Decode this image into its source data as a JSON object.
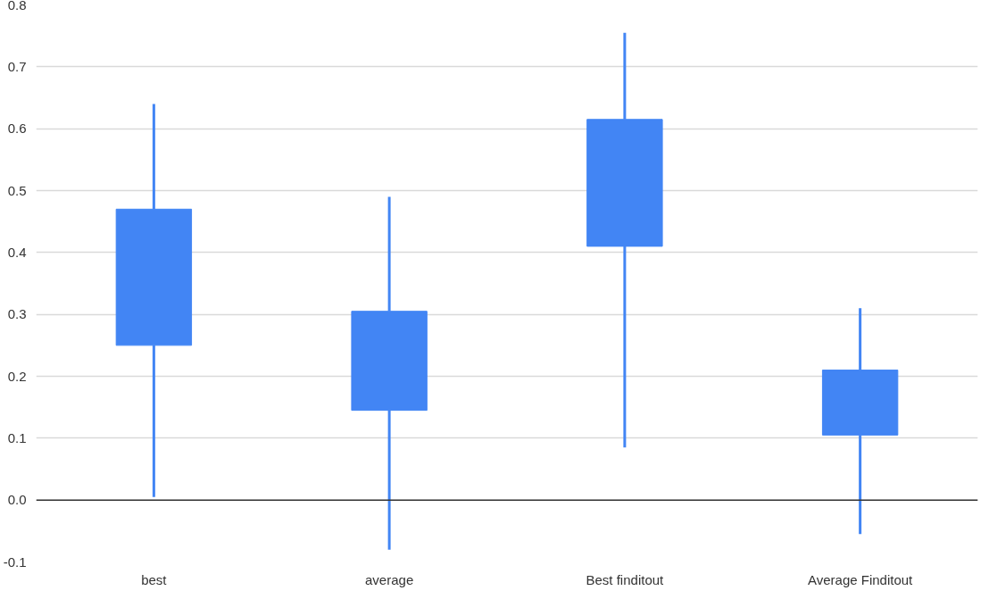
{
  "chart_data": {
    "type": "candlestick",
    "categories": [
      "best",
      "average",
      "Best finditout",
      "Average Finditout"
    ],
    "ohlc": [
      [
        0.25,
        0.64,
        0.005,
        0.47
      ],
      [
        0.145,
        0.49,
        -0.08,
        0.305
      ],
      [
        0.41,
        0.755,
        0.085,
        0.615
      ],
      [
        0.105,
        0.31,
        -0.055,
        0.21
      ]
    ],
    "color": "#4285f4",
    "ylim": [
      -0.1,
      0.8
    ],
    "yticks": [
      {
        "value": -0.1,
        "label": "-0.1"
      },
      {
        "value": 0,
        "label": "0.0"
      },
      {
        "value": 0.1,
        "label": "0.1"
      },
      {
        "value": 0.2,
        "label": "0.2"
      },
      {
        "value": 0.3,
        "label": "0.3"
      },
      {
        "value": 0.4,
        "label": "0.4"
      },
      {
        "value": 0.5,
        "label": "0.5"
      },
      {
        "value": 0.6,
        "label": "0.6"
      },
      {
        "value": 0.7,
        "label": "0.7"
      },
      {
        "value": 0.8,
        "label": "0.8"
      }
    ],
    "grid": "y",
    "ref_lines": [
      {
        "axis": "y",
        "value": 0,
        "color": "#333333"
      }
    ]
  }
}
